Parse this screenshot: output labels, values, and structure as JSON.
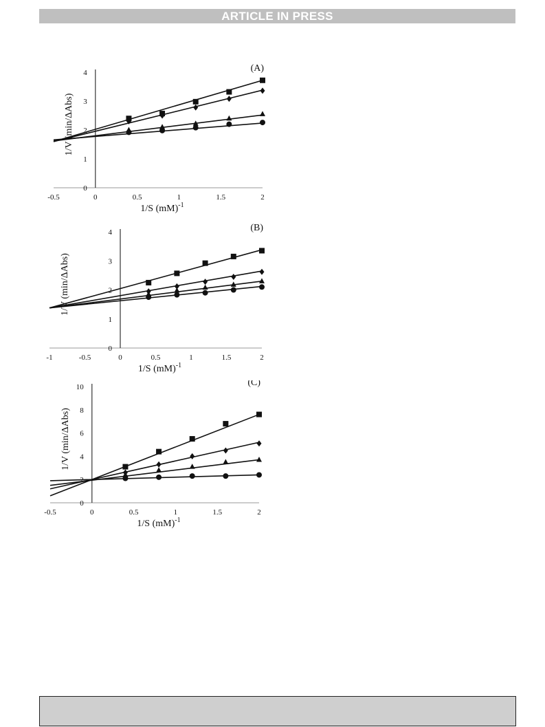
{
  "banner": {
    "text": "ARTICLE IN PRESS"
  },
  "chart_data": [
    {
      "type": "scatter",
      "panel_label": "(A)",
      "xlabel": "1/S (mM)",
      "xlabel_sup": "-1",
      "ylabel": "1/V  (min/ΔAbs)",
      "xlim": [
        -0.5,
        2
      ],
      "ylim": [
        0,
        4
      ],
      "xticks": [
        -0.5,
        0,
        0.5,
        1,
        1.5,
        2
      ],
      "yticks": [
        0,
        1,
        2,
        3,
        4
      ],
      "grid": false,
      "legend": "none",
      "x": [
        0.4,
        0.8,
        1.2,
        1.6,
        2.0
      ],
      "series": [
        {
          "marker": "square",
          "values": [
            2.4,
            2.57,
            2.98,
            3.32,
            3.72
          ],
          "fit": {
            "x0": -0.5,
            "y0": 1.6,
            "x1": 2.0,
            "y1": 3.72
          }
        },
        {
          "marker": "diamond",
          "values": [
            2.3,
            2.5,
            2.78,
            3.08,
            3.36
          ],
          "fit": {
            "x0": -0.5,
            "y0": 1.6,
            "x1": 2.0,
            "y1": 3.38
          }
        },
        {
          "marker": "triangle",
          "values": [
            2.0,
            2.1,
            2.22,
            2.4,
            2.55
          ],
          "fit": {
            "x0": -0.5,
            "y0": 1.62,
            "x1": 2.0,
            "y1": 2.52
          }
        },
        {
          "marker": "circle",
          "values": [
            1.92,
            1.98,
            2.08,
            2.2,
            2.26
          ],
          "fit": {
            "x0": -0.5,
            "y0": 1.66,
            "x1": 2.0,
            "y1": 2.24
          }
        }
      ]
    },
    {
      "type": "scatter",
      "panel_label": "(B)",
      "xlabel": "1/S (mM)",
      "xlabel_sup": "-1",
      "ylabel": "1/V  (min/ΔAbs)",
      "xlim": [
        -1,
        2
      ],
      "ylim": [
        0,
        4
      ],
      "xticks": [
        -1,
        -0.5,
        0,
        0.5,
        1,
        1.5,
        2
      ],
      "yticks": [
        0,
        1,
        2,
        3,
        4
      ],
      "grid": false,
      "legend": "none",
      "x": [
        0.4,
        0.8,
        1.2,
        1.6,
        2.0
      ],
      "series": [
        {
          "marker": "square",
          "values": [
            2.25,
            2.57,
            2.92,
            3.15,
            3.35
          ],
          "fit": {
            "x0": -1.0,
            "y0": 1.38,
            "x1": 2.0,
            "y1": 3.38
          }
        },
        {
          "marker": "diamond",
          "values": [
            1.95,
            2.12,
            2.28,
            2.45,
            2.62
          ],
          "fit": {
            "x0": -1.0,
            "y0": 1.38,
            "x1": 2.0,
            "y1": 2.65
          }
        },
        {
          "marker": "triangle",
          "values": [
            1.85,
            1.98,
            2.08,
            2.18,
            2.3
          ],
          "fit": {
            "x0": -1.0,
            "y0": 1.38,
            "x1": 2.0,
            "y1": 2.3
          }
        },
        {
          "marker": "circle",
          "values": [
            1.75,
            1.83,
            1.9,
            2.0,
            2.1
          ],
          "fit": {
            "x0": -1.0,
            "y0": 1.38,
            "x1": 2.0,
            "y1": 2.12
          }
        }
      ]
    },
    {
      "type": "scatter",
      "panel_label": "(C)",
      "xlabel": "1/S (mM)",
      "xlabel_sup": "-1",
      "ylabel": "1/V  (min/ΔAbs)",
      "xlim": [
        -0.5,
        2
      ],
      "ylim": [
        0,
        10
      ],
      "xticks": [
        -0.5,
        0,
        0.5,
        1,
        1.5,
        2
      ],
      "yticks": [
        0,
        2,
        4,
        6,
        8,
        10
      ],
      "grid": false,
      "legend": "none",
      "x": [
        0.4,
        0.8,
        1.2,
        1.6,
        2.0
      ],
      "series": [
        {
          "marker": "square",
          "values": [
            3.1,
            4.4,
            5.5,
            6.8,
            7.6
          ],
          "fit": {
            "x0": -0.5,
            "y0": 0.6,
            "x1": 2.0,
            "y1": 7.6
          }
        },
        {
          "marker": "diamond",
          "values": [
            2.6,
            3.3,
            4.0,
            4.5,
            5.1
          ],
          "fit": {
            "x0": -0.5,
            "y0": 1.2,
            "x1": 2.0,
            "y1": 5.2
          }
        },
        {
          "marker": "triangle",
          "values": [
            2.4,
            2.8,
            3.1,
            3.5,
            3.7
          ],
          "fit": {
            "x0": -0.5,
            "y0": 1.5,
            "x1": 2.0,
            "y1": 3.7
          }
        },
        {
          "marker": "circle",
          "values": [
            2.1,
            2.2,
            2.3,
            2.3,
            2.4
          ],
          "fit": {
            "x0": -0.5,
            "y0": 1.9,
            "x1": 2.0,
            "y1": 2.4
          }
        }
      ]
    }
  ]
}
